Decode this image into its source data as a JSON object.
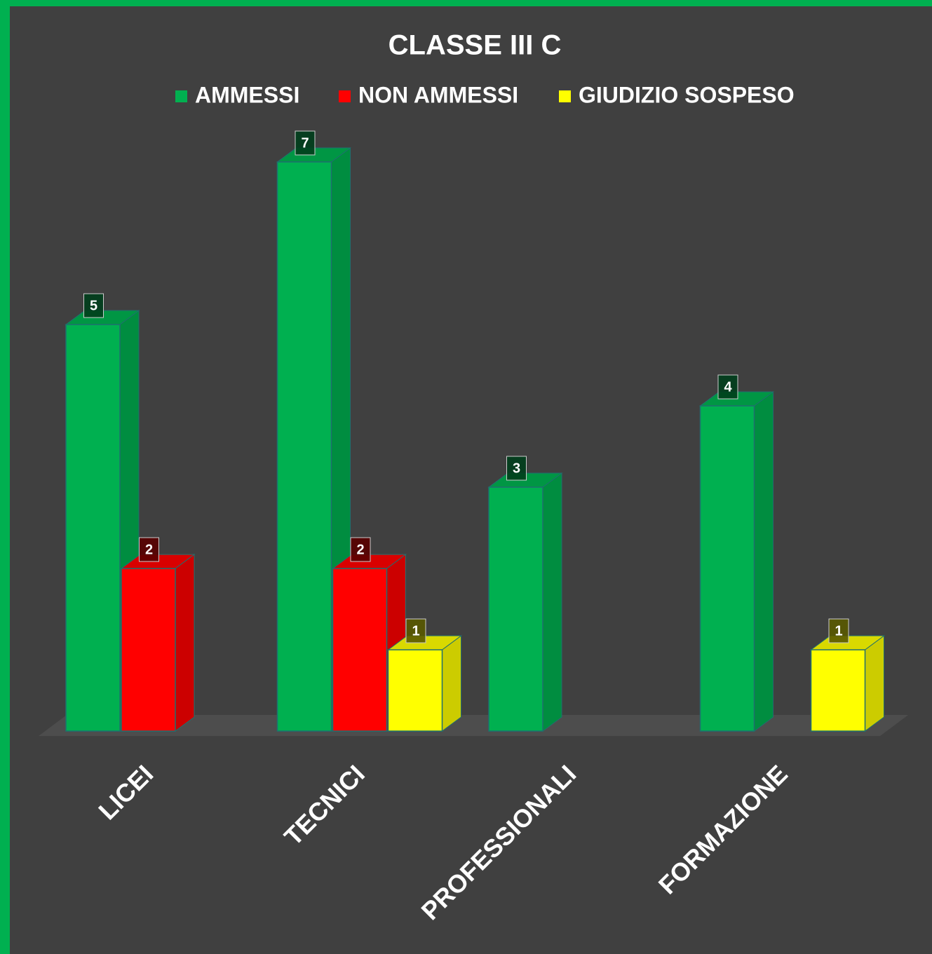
{
  "chart_data": {
    "type": "bar3d",
    "title": "CLASSE III C",
    "categories": [
      "LICEI",
      "TECNICI",
      "PROFESSIONALI",
      "FORMAZIONE"
    ],
    "series": [
      {
        "name": "AMMESSI",
        "color": "#00b050",
        "values": [
          5,
          7,
          3,
          4
        ]
      },
      {
        "name": "NON AMMESSI",
        "color": "#ff0000",
        "values": [
          2,
          2,
          null,
          null
        ]
      },
      {
        "name": "GIUDIZIO SOSPESO",
        "color": "#ffff00",
        "values": [
          null,
          1,
          null,
          1
        ]
      }
    ],
    "legend": "top"
  }
}
